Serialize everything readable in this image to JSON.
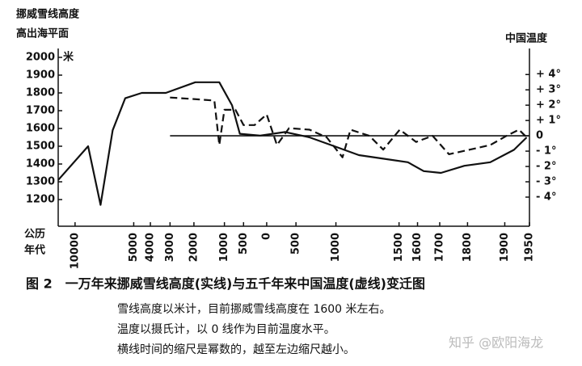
{
  "chart_data": {
    "type": "line",
    "y_label": [
      "挪威雪线高度",
      "高出海平面"
    ],
    "y_unit": "米",
    "y2_label": "中国温度",
    "x_label": [
      "公历",
      "年代"
    ],
    "xlim": [
      -12000,
      1950
    ],
    "xticks": [
      {
        "value": -10000,
        "label": "10000"
      },
      {
        "value": -5000,
        "label": "5000"
      },
      {
        "value": -4000,
        "label": "4000"
      },
      {
        "value": -3000,
        "label": "3000"
      },
      {
        "value": -2000,
        "label": "2000"
      },
      {
        "value": -1000,
        "label": "1000"
      },
      {
        "value": -500,
        "label": "500"
      },
      0,
      500,
      1000,
      1500,
      1600,
      1700,
      1800,
      1900,
      1950
    ],
    "ylim": [
      1050,
      2050
    ],
    "yticks": [
      1200,
      1300,
      1400,
      1500,
      1600,
      1700,
      1800,
      1900,
      2000
    ],
    "y2lim": [
      -5.9,
      5.7
    ],
    "y2ticks": [
      {
        "value": 4,
        "label": "+ 4°"
      },
      {
        "value": 3,
        "label": "+ 3°"
      },
      {
        "value": 2,
        "label": "+ 2°"
      },
      {
        "value": 1,
        "label": "+ 1°"
      },
      0,
      {
        "value": -1,
        "label": "- 1°"
      },
      {
        "value": -2,
        "label": "- 2°"
      },
      {
        "value": -3,
        "label": "- 3°"
      },
      {
        "value": -4,
        "label": "- 4°"
      }
    ],
    "zero_line": {
      "axis": "y2",
      "value": 0,
      "from": -3000
    },
    "series": [
      {
        "color": "#111111",
        "style": "solid",
        "x": [
          -12000,
          -8650,
          -7500,
          -6500,
          -5570,
          -4500,
          -3200,
          -1950,
          -1150,
          -790,
          -590,
          -130,
          330,
          690,
          983,
          1216,
          1400,
          1550,
          1630,
          1705,
          1790,
          1865,
          1920,
          1945
        ],
        "values": [
          1310,
          1500,
          1170,
          1590,
          1770,
          1800,
          1800,
          1860,
          1860,
          1730,
          1570,
          1560,
          1580,
          1550,
          1500,
          1450,
          1430,
          1410,
          1360,
          1350,
          1390,
          1410,
          1480,
          1550
        ]
      },
      {
        "color": "#111111",
        "style": "dashed",
        "axis": "y2",
        "x": [
          -3000,
          -2000,
          -1300,
          -1150,
          -1000,
          -700,
          -500,
          -250,
          0,
          190,
          394,
          690,
          900,
          1066,
          1142,
          1300,
          1400,
          1504,
          1593,
          1670,
          1736,
          1807,
          1865,
          1904,
          1930,
          1945
        ],
        "values": [
          2.5,
          2.4,
          2.3,
          -0.6,
          1.7,
          1.7,
          0.7,
          0.7,
          1.4,
          -0.6,
          0.5,
          0.4,
          -0.1,
          -1.4,
          0.4,
          0,
          -0.9,
          0.4,
          -0.4,
          0,
          -1.2,
          -0.9,
          -0.6,
          0,
          0.4,
          -0.1
        ]
      }
    ],
    "caption": "图 2　一万年来挪威雪线高度(实线)与五千年来中国温度(虚线)变迁图",
    "notes": [
      "雪线高度以米计，目前挪威雪线高度在 1600 米左右。",
      "温度以摄氏计，以 0 线作为目前温度水平。",
      "横线时间的缩尺是幂数的，越至左边缩尺越小。"
    ]
  },
  "watermark": "知乎 @欧阳海龙"
}
